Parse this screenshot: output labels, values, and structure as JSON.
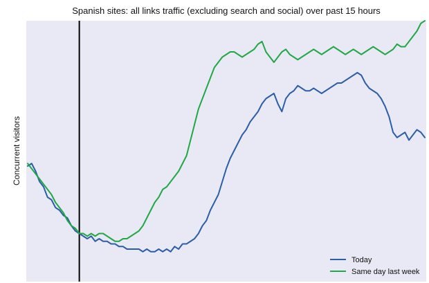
{
  "chart_data": {
    "type": "line",
    "title": "Spanish sites: all links traffic (excluding search and social) over past 15 hours",
    "xlabel": "",
    "ylabel": "Concurrent visitors",
    "x_tick_labels": [],
    "y_tick_labels": [],
    "grid": false,
    "legend_position": "bottom-right",
    "ylim": [
      0,
      100
    ],
    "xlim": [
      0,
      100
    ],
    "marker_line": {
      "x": 13
    },
    "background": "#e9e8f5",
    "series": [
      {
        "name": "Today",
        "color": "#2b5ea8",
        "x": [
          0,
          1,
          2,
          3,
          4,
          5,
          6,
          7,
          8,
          9,
          10,
          11,
          12,
          13,
          14,
          15,
          16,
          17,
          18,
          19,
          20,
          21,
          22,
          23,
          24,
          25,
          26,
          27,
          28,
          29,
          30,
          31,
          32,
          33,
          34,
          35,
          36,
          37,
          38,
          39,
          40,
          41,
          42,
          43,
          44,
          45,
          46,
          47,
          48,
          49,
          50,
          51,
          52,
          53,
          54,
          55,
          56,
          57,
          58,
          59,
          60,
          61,
          62,
          63,
          64,
          65,
          66,
          67,
          68,
          69,
          70,
          71,
          72,
          73,
          74,
          75,
          76,
          77,
          78,
          79,
          80,
          81,
          82,
          83,
          84,
          85,
          86,
          87,
          88,
          89,
          90,
          91,
          92,
          93,
          94,
          95,
          96,
          97,
          98,
          99,
          100
        ],
        "values": [
          44,
          45,
          42,
          38,
          36,
          32,
          31,
          28,
          27,
          25,
          24,
          21,
          19,
          18,
          17,
          16,
          17,
          15,
          16,
          15,
          15,
          14,
          14,
          13,
          13,
          12,
          12,
          12,
          12,
          11,
          12,
          11,
          11,
          12,
          11,
          12,
          11,
          13,
          12,
          14,
          14,
          15,
          16,
          18,
          21,
          23,
          27,
          30,
          33,
          38,
          43,
          47,
          50,
          53,
          56,
          58,
          61,
          63,
          65,
          68,
          70,
          71,
          72,
          68,
          65,
          70,
          72,
          73,
          75,
          74,
          73,
          73,
          74,
          73,
          72,
          73,
          74,
          75,
          76,
          76,
          77,
          78,
          79,
          80,
          79,
          76,
          74,
          73,
          72,
          70,
          67,
          63,
          57,
          55,
          56,
          57,
          54,
          56,
          58,
          57,
          55
        ]
      },
      {
        "name": "Same day last week",
        "color": "#1fa843",
        "x": [
          0,
          1,
          2,
          3,
          4,
          5,
          6,
          7,
          8,
          9,
          10,
          11,
          12,
          13,
          14,
          15,
          16,
          17,
          18,
          19,
          20,
          21,
          22,
          23,
          24,
          25,
          26,
          27,
          28,
          29,
          30,
          31,
          32,
          33,
          34,
          35,
          36,
          37,
          38,
          39,
          40,
          41,
          42,
          43,
          44,
          45,
          46,
          47,
          48,
          49,
          50,
          51,
          52,
          53,
          54,
          55,
          56,
          57,
          58,
          59,
          60,
          61,
          62,
          63,
          64,
          65,
          66,
          67,
          68,
          69,
          70,
          71,
          72,
          73,
          74,
          75,
          76,
          77,
          78,
          79,
          80,
          81,
          82,
          83,
          84,
          85,
          86,
          87,
          88,
          89,
          90,
          91,
          92,
          93,
          94,
          95,
          96,
          97,
          98,
          99,
          100
        ],
        "values": [
          45,
          43,
          41,
          39,
          37,
          35,
          33,
          30,
          28,
          26,
          23,
          21,
          20,
          18,
          18,
          17,
          18,
          17,
          18,
          18,
          17,
          16,
          15,
          15,
          16,
          16,
          17,
          18,
          19,
          21,
          24,
          27,
          30,
          32,
          35,
          36,
          38,
          40,
          42,
          45,
          48,
          54,
          60,
          66,
          70,
          74,
          78,
          82,
          84,
          86,
          87,
          88,
          88,
          87,
          86,
          87,
          88,
          89,
          91,
          92,
          88,
          86,
          84,
          86,
          88,
          89,
          87,
          86,
          85,
          86,
          87,
          88,
          89,
          88,
          87,
          88,
          89,
          90,
          89,
          88,
          87,
          88,
          89,
          88,
          87,
          88,
          89,
          90,
          89,
          88,
          87,
          88,
          89,
          91,
          90,
          90,
          92,
          94,
          96,
          99,
          100
        ]
      }
    ]
  }
}
